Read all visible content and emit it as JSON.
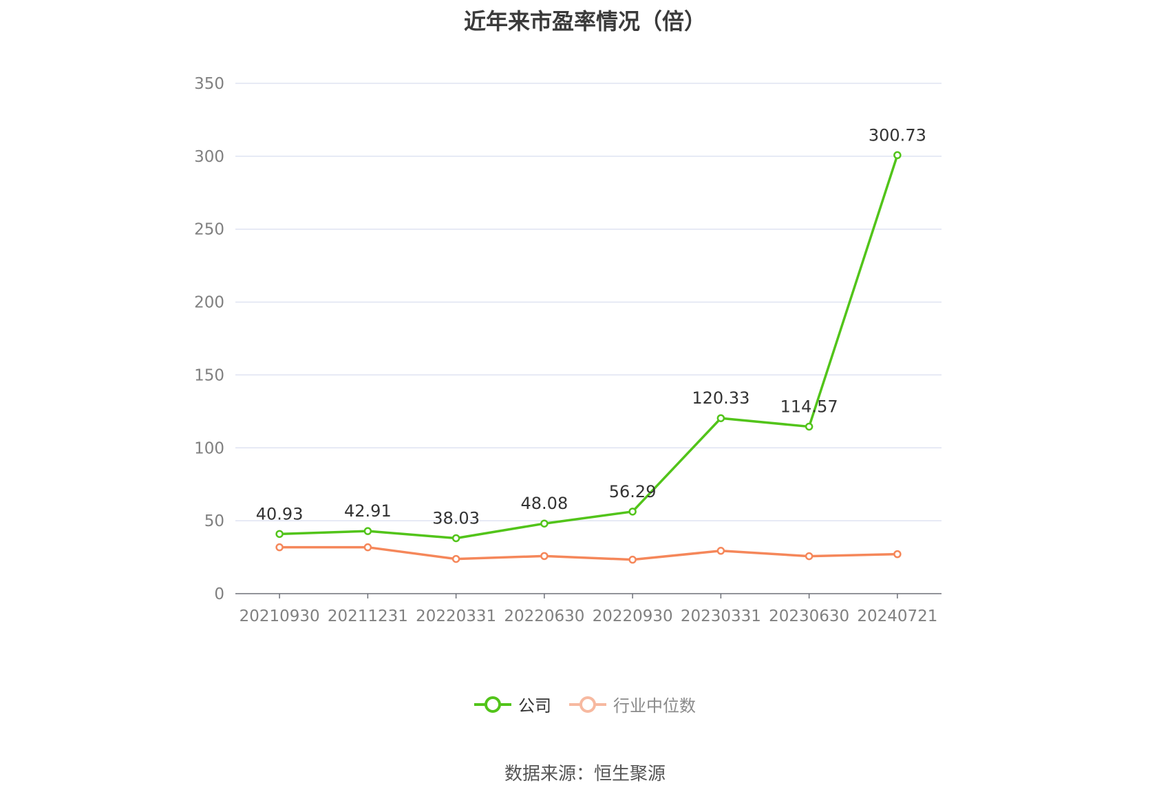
{
  "chart_data": {
    "type": "line",
    "title": "近年来市盈率情况（倍）",
    "categories": [
      "20210930",
      "20211231",
      "20220331",
      "20220630",
      "20220930",
      "20230331",
      "20230630",
      "20240721"
    ],
    "ylim": [
      0,
      350
    ],
    "yticks": [
      0,
      50,
      100,
      150,
      200,
      250,
      300,
      350
    ],
    "grid": true,
    "legend_position": "bottom",
    "series": [
      {
        "name": "公司",
        "color": "#52c41a",
        "values": [
          40.93,
          42.91,
          38.03,
          48.08,
          56.29,
          120.33,
          114.57,
          300.73
        ],
        "labels": [
          "40.93",
          "42.91",
          "38.03",
          "48.08",
          "56.29",
          "120.33",
          "114.57",
          "300.73"
        ]
      },
      {
        "name": "行业中位数",
        "color": "#f5875a",
        "values": [
          31.8,
          31.8,
          23.8,
          25.8,
          23.3,
          29.4,
          25.7,
          27.1
        ]
      }
    ]
  },
  "legend": {
    "company_label": "公司",
    "industry_label": "行业中位数"
  },
  "source": "数据来源：恒生聚源"
}
